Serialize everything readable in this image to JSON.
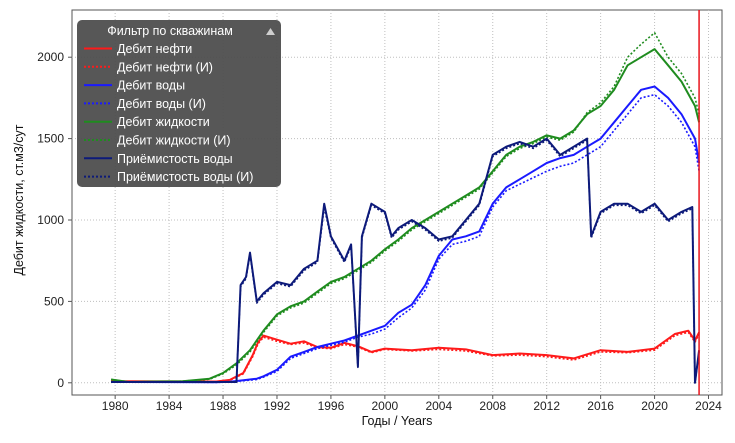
{
  "chart_data": {
    "type": "line",
    "title": "",
    "xlabel": "Годы / Years",
    "ylabel": "Дебит жидкости, ст.м3/сут",
    "xlim": [
      1976.8,
      2025
    ],
    "ylim": [
      -75,
      2290
    ],
    "x_ticks": [
      "1980",
      "1984",
      "1988",
      "1992",
      "1996",
      "2000",
      "2004",
      "2008",
      "2012",
      "2016",
      "2020",
      "2024"
    ],
    "y_ticks": [
      "0",
      "500",
      "1000",
      "1500",
      "2000"
    ],
    "grid": true,
    "marker_line": {
      "x": 2023.3,
      "color": "#e8141c"
    },
    "legend": {
      "title": "Фильтр по скважинам",
      "placement": "top-left",
      "collapse_icon": "triangle-up-icon"
    },
    "series": [
      {
        "name": "Дебит нефти",
        "color": "#ff1a1a",
        "style": "solid",
        "x": [
          1979.7,
          1987.5,
          1988.5,
          1989.5,
          1990.2,
          1990.6,
          1991,
          1992,
          1993,
          1994,
          1995,
          1996,
          1997,
          1998,
          1999,
          2000,
          2002,
          2004,
          2006,
          2008,
          2010,
          2012,
          2014,
          2016,
          2018,
          2020,
          2021.5,
          2022.5,
          2023,
          2023.3
        ],
        "y": [
          10,
          8,
          18,
          60,
          170,
          250,
          290,
          265,
          240,
          255,
          220,
          215,
          245,
          225,
          190,
          210,
          200,
          215,
          205,
          170,
          180,
          170,
          150,
          200,
          190,
          210,
          300,
          320,
          260,
          310
        ]
      },
      {
        "name": "Дебит нефти (И)",
        "color": "#ff1a1a",
        "style": "dotted",
        "x": [
          1979.7,
          1987.5,
          1988.5,
          1989.5,
          1990.2,
          1990.6,
          1991,
          1992,
          1993,
          1994,
          1995,
          1996,
          1997,
          1998,
          1999,
          2000,
          2002,
          2004,
          2006,
          2008,
          2010,
          2012,
          2014,
          2016,
          2018,
          2020,
          2021.5,
          2022.5,
          2023,
          2023.3
        ],
        "y": [
          10,
          8,
          15,
          55,
          160,
          240,
          280,
          255,
          235,
          245,
          215,
          210,
          235,
          220,
          185,
          205,
          195,
          205,
          195,
          165,
          170,
          160,
          140,
          190,
          185,
          200,
          290,
          310,
          250,
          300
        ]
      },
      {
        "name": "Дебит воды",
        "color": "#1a1aff",
        "style": "solid",
        "x": [
          1979.7,
          1987.5,
          1988.5,
          1989.5,
          1990.5,
          1991,
          1992,
          1993,
          1994,
          1995,
          1996,
          1997,
          1998,
          1999,
          2000,
          2001,
          2002,
          2003,
          2004,
          2005,
          2006,
          2007,
          2008,
          2009,
          2010,
          2011,
          2012,
          2013,
          2014,
          2015,
          2016,
          2017,
          2018,
          2019,
          2020,
          2021,
          2022,
          2023,
          2023.3
        ],
        "y": [
          5,
          3,
          6,
          15,
          25,
          40,
          80,
          160,
          190,
          220,
          240,
          260,
          290,
          320,
          350,
          430,
          480,
          600,
          780,
          880,
          900,
          930,
          1100,
          1200,
          1250,
          1300,
          1350,
          1380,
          1400,
          1450,
          1500,
          1600,
          1700,
          1800,
          1820,
          1750,
          1650,
          1500,
          1350
        ]
      },
      {
        "name": "Дебит воды (И)",
        "color": "#1a1aff",
        "style": "dotted",
        "x": [
          1979.7,
          1987.5,
          1988.5,
          1989.5,
          1990.5,
          1991,
          1992,
          1993,
          1994,
          1995,
          1996,
          1997,
          1998,
          1999,
          2000,
          2001,
          2002,
          2003,
          2004,
          2005,
          2006,
          2007,
          2008,
          2009,
          2010,
          2011,
          2012,
          2013,
          2014,
          2015,
          2016,
          2017,
          2018,
          2019,
          2020,
          2021,
          2022,
          2023,
          2023.3
        ],
        "y": [
          5,
          3,
          6,
          12,
          20,
          35,
          70,
          150,
          180,
          210,
          230,
          250,
          280,
          300,
          330,
          400,
          460,
          570,
          760,
          850,
          870,
          900,
          1080,
          1180,
          1220,
          1260,
          1300,
          1330,
          1350,
          1400,
          1450,
          1550,
          1650,
          1750,
          1770,
          1700,
          1600,
          1450,
          1300
        ]
      },
      {
        "name": "Дебит жидкости",
        "color": "#1f8c1f",
        "style": "solid",
        "x": [
          1979.7,
          1981,
          1983,
          1985,
          1987,
          1988,
          1989,
          1990,
          1991,
          1992,
          1993,
          1994,
          1995,
          1996,
          1997,
          1998,
          1999,
          2000,
          2001,
          2002,
          2003,
          2004,
          2005,
          2006,
          2007,
          2008,
          2009,
          2010,
          2011,
          2012,
          2013,
          2014,
          2015,
          2016,
          2017,
          2018,
          2019,
          2020,
          2021,
          2022,
          2023,
          2023.3
        ],
        "y": [
          20,
          5,
          8,
          10,
          25,
          60,
          120,
          200,
          320,
          420,
          470,
          500,
          560,
          620,
          650,
          700,
          750,
          820,
          880,
          950,
          1000,
          1050,
          1100,
          1150,
          1200,
          1300,
          1400,
          1450,
          1480,
          1520,
          1500,
          1550,
          1650,
          1700,
          1800,
          1950,
          2000,
          2050,
          1950,
          1850,
          1700,
          1600
        ]
      },
      {
        "name": "Дебит жидкости (И)",
        "color": "#1f8c1f",
        "style": "dotted",
        "x": [
          1979.7,
          1981,
          1983,
          1985,
          1987,
          1988,
          1989,
          1990,
          1991,
          1992,
          1993,
          1994,
          1995,
          1996,
          1997,
          1998,
          1999,
          2000,
          2001,
          2002,
          2003,
          2004,
          2005,
          2006,
          2007,
          2008,
          2009,
          2010,
          2011,
          2012,
          2013,
          2014,
          2015,
          2016,
          2017,
          2018,
          2019,
          2020,
          2021,
          2022,
          2023,
          2023.3
        ],
        "y": [
          20,
          5,
          8,
          10,
          22,
          55,
          110,
          190,
          310,
          410,
          460,
          490,
          550,
          610,
          640,
          690,
          740,
          810,
          870,
          940,
          990,
          1040,
          1090,
          1140,
          1190,
          1290,
          1390,
          1440,
          1470,
          1510,
          1490,
          1540,
          1660,
          1720,
          1820,
          2000,
          2080,
          2150,
          2000,
          1900,
          1750,
          1650
        ]
      },
      {
        "name": "Приёмистость воды",
        "color": "#0d1a7a",
        "style": "solid",
        "x": [
          1979.7,
          1989,
          1989.3,
          1989.7,
          1990,
          1990.5,
          1991,
          1992,
          1993,
          1994,
          1995,
          1995.5,
          1996,
          1997,
          1997.5,
          1998,
          1998.3,
          1999,
          2000,
          2000.5,
          2001,
          2002,
          2003,
          2004,
          2005,
          2006,
          2007,
          2008,
          2009,
          2010,
          2011,
          2012,
          2013,
          2014,
          2015,
          2015.3,
          2016,
          2017,
          2018,
          2019,
          2020,
          2021,
          2022,
          2022.8,
          2023,
          2023.3
        ],
        "y": [
          5,
          5,
          600,
          650,
          800,
          500,
          550,
          620,
          600,
          700,
          750,
          1100,
          900,
          750,
          850,
          100,
          900,
          1100,
          1050,
          900,
          950,
          1000,
          950,
          880,
          900,
          1000,
          1100,
          1400,
          1450,
          1480,
          1450,
          1500,
          1400,
          1450,
          1500,
          900,
          1050,
          1100,
          1100,
          1050,
          1100,
          1000,
          1050,
          1080,
          0,
          200
        ]
      },
      {
        "name": "Приёмистость воды (И)",
        "color": "#0d1a7a",
        "style": "dotted",
        "x": [
          1979.7,
          1989,
          1989.3,
          1989.7,
          1990,
          1990.5,
          1991,
          1992,
          1993,
          1994,
          1995,
          1995.5,
          1996,
          1997,
          1997.5,
          1998,
          1998.3,
          1999,
          2000,
          2000.5,
          2001,
          2002,
          2003,
          2004,
          2005,
          2006,
          2007,
          2008,
          2009,
          2010,
          2011,
          2012,
          2013,
          2014,
          2015,
          2015.3,
          2016,
          2017,
          2018,
          2019,
          2020,
          2021,
          2022,
          2022.8,
          2023,
          2023.3
        ],
        "y": [
          5,
          5,
          590,
          640,
          790,
          490,
          540,
          610,
          590,
          690,
          740,
          1080,
          890,
          740,
          840,
          95,
          890,
          1090,
          1040,
          890,
          940,
          990,
          940,
          870,
          890,
          990,
          1090,
          1390,
          1440,
          1470,
          1440,
          1490,
          1390,
          1440,
          1490,
          890,
          1040,
          1090,
          1090,
          1040,
          1090,
          990,
          1040,
          1070,
          0,
          190
        ]
      }
    ]
  }
}
